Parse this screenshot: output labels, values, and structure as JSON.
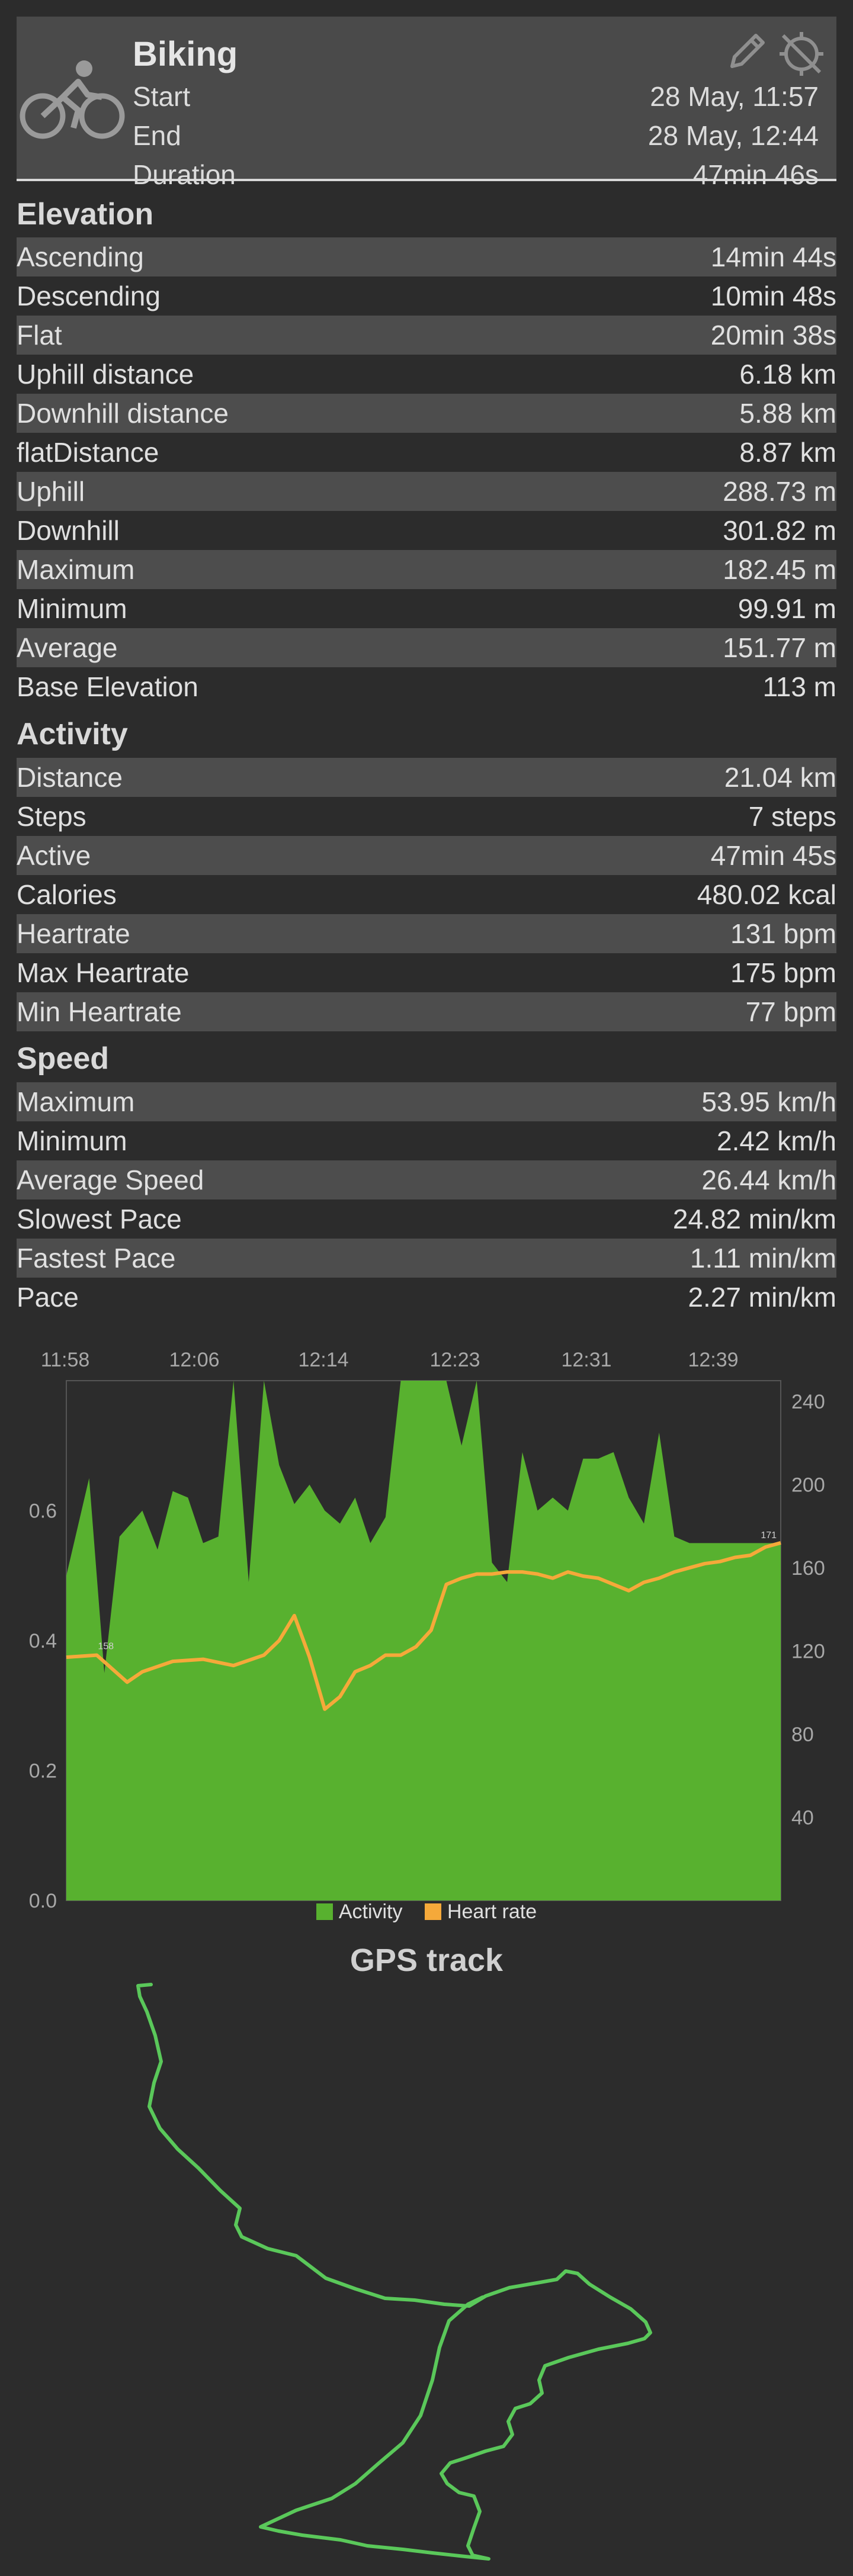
{
  "header": {
    "title": "Biking",
    "rows": [
      {
        "label": "Start",
        "value": "28 May, 11:57"
      },
      {
        "label": "End",
        "value": "28 May, 12:44"
      },
      {
        "label": "Duration",
        "value": "47min 46s"
      }
    ],
    "icons": [
      "bike-icon",
      "edit-icon",
      "gps-off-icon"
    ]
  },
  "sections": [
    {
      "title": "Elevation",
      "rows": [
        {
          "label": "Ascending",
          "value": "14min 44s"
        },
        {
          "label": "Descending",
          "value": "10min 48s"
        },
        {
          "label": "Flat",
          "value": "20min 38s"
        },
        {
          "label": "Uphill distance",
          "value": "6.18 km"
        },
        {
          "label": "Downhill distance",
          "value": "5.88 km"
        },
        {
          "label": "flatDistance",
          "value": "8.87 km"
        },
        {
          "label": "Uphill",
          "value": "288.73 m"
        },
        {
          "label": "Downhill",
          "value": "301.82 m"
        },
        {
          "label": "Maximum",
          "value": "182.45 m"
        },
        {
          "label": "Minimum",
          "value": "99.91 m"
        },
        {
          "label": "Average",
          "value": "151.77 m"
        },
        {
          "label": "Base Elevation",
          "value": "113 m"
        }
      ]
    },
    {
      "title": "Activity",
      "rows": [
        {
          "label": "Distance",
          "value": "21.04 km"
        },
        {
          "label": "Steps",
          "value": "7 steps"
        },
        {
          "label": "Active",
          "value": "47min 45s"
        },
        {
          "label": "Calories",
          "value": "480.02 kcal"
        },
        {
          "label": "Heartrate",
          "value": "131 bpm"
        },
        {
          "label": "Max Heartrate",
          "value": "175 bpm"
        },
        {
          "label": "Min Heartrate",
          "value": "77 bpm"
        }
      ]
    },
    {
      "title": "Speed",
      "rows": [
        {
          "label": "Maximum",
          "value": "53.95 km/h"
        },
        {
          "label": "Minimum",
          "value": "2.42 km/h"
        },
        {
          "label": "Average Speed",
          "value": "26.44 km/h"
        },
        {
          "label": "Slowest Pace",
          "value": "24.82 min/km"
        },
        {
          "label": "Fastest Pace",
          "value": "1.11 min/km"
        },
        {
          "label": "Pace",
          "value": "2.27 min/km"
        }
      ]
    }
  ],
  "colors": {
    "activity": "#58b12f",
    "heart_rate": "#f5a93a",
    "track": "#5ac85a",
    "row_alt": "#4d4d4d",
    "header_bg": "#4a4a4a"
  },
  "chart_data": {
    "type": "area",
    "x_tick_labels": [
      "11:58",
      "12:06",
      "12:14",
      "12:23",
      "12:31",
      "12:39"
    ],
    "x_minutes_from_start": [
      0,
      5,
      8,
      10,
      12,
      14,
      15,
      17,
      19,
      21,
      22,
      24,
      25,
      26,
      27,
      28,
      29,
      30,
      31,
      32,
      33,
      34,
      35,
      36,
      37,
      38,
      39,
      40,
      41,
      42,
      43,
      44,
      45,
      46,
      47
    ],
    "left_axis": {
      "ylim": [
        0,
        0.8
      ],
      "ticks": [
        0.0,
        0.2,
        0.4,
        0.6
      ]
    },
    "right_axis": {
      "ylim": [
        0,
        250
      ],
      "ticks": [
        40,
        80,
        120,
        160,
        200,
        240
      ]
    },
    "series": [
      {
        "name": "Activity",
        "axis": "left",
        "x": [
          0,
          1.5,
          2.5,
          3.5,
          5,
          6,
          7,
          8,
          9,
          10,
          11,
          12,
          13,
          14,
          15,
          16,
          17,
          18,
          19,
          20,
          21,
          22,
          23,
          24,
          25,
          26,
          27,
          28,
          29,
          30,
          31,
          32,
          33,
          34,
          35,
          36,
          37,
          38,
          39,
          40,
          41,
          42,
          43,
          44,
          45,
          46,
          47
        ],
        "values": [
          0.5,
          0.65,
          0.35,
          0.56,
          0.6,
          0.54,
          0.63,
          0.62,
          0.55,
          0.56,
          0.81,
          0.49,
          0.82,
          0.67,
          0.61,
          0.64,
          0.6,
          0.58,
          0.62,
          0.55,
          0.59,
          0.9,
          0.89,
          0.99,
          0.9,
          0.7,
          0.8,
          0.52,
          0.49,
          0.69,
          0.6,
          0.62,
          0.6,
          0.68,
          0.68,
          0.69,
          0.62,
          0.58,
          0.72,
          0.56,
          0.55,
          0.55,
          0.55,
          0.55,
          0.55,
          0.55,
          0.55
        ]
      },
      {
        "name": "Heart rate",
        "axis": "right",
        "x": [
          0,
          2,
          4,
          5,
          7,
          9,
          11,
          13,
          14,
          15,
          16,
          17,
          18,
          19,
          20,
          21,
          22,
          23,
          24,
          25,
          26,
          27,
          28,
          29,
          30,
          31,
          32,
          33,
          34,
          35,
          36,
          37,
          38,
          39,
          40,
          41,
          42,
          43,
          44,
          45,
          46,
          47
        ],
        "values": [
          117,
          118,
          105,
          110,
          115,
          116,
          113,
          118,
          125,
          137,
          117,
          92,
          98,
          110,
          113,
          118,
          118,
          122,
          130,
          152,
          155,
          157,
          157,
          158,
          158,
          157,
          155,
          158,
          156,
          155,
          152,
          149,
          153,
          155,
          158,
          160,
          162,
          163,
          165,
          166,
          170,
          172
        ]
      }
    ],
    "data_labels": [
      "158",
      "171"
    ],
    "legend": [
      "Activity",
      "Heart rate"
    ],
    "legend_position": "bottom",
    "grid": false
  },
  "gps": {
    "title": "GPS track"
  }
}
